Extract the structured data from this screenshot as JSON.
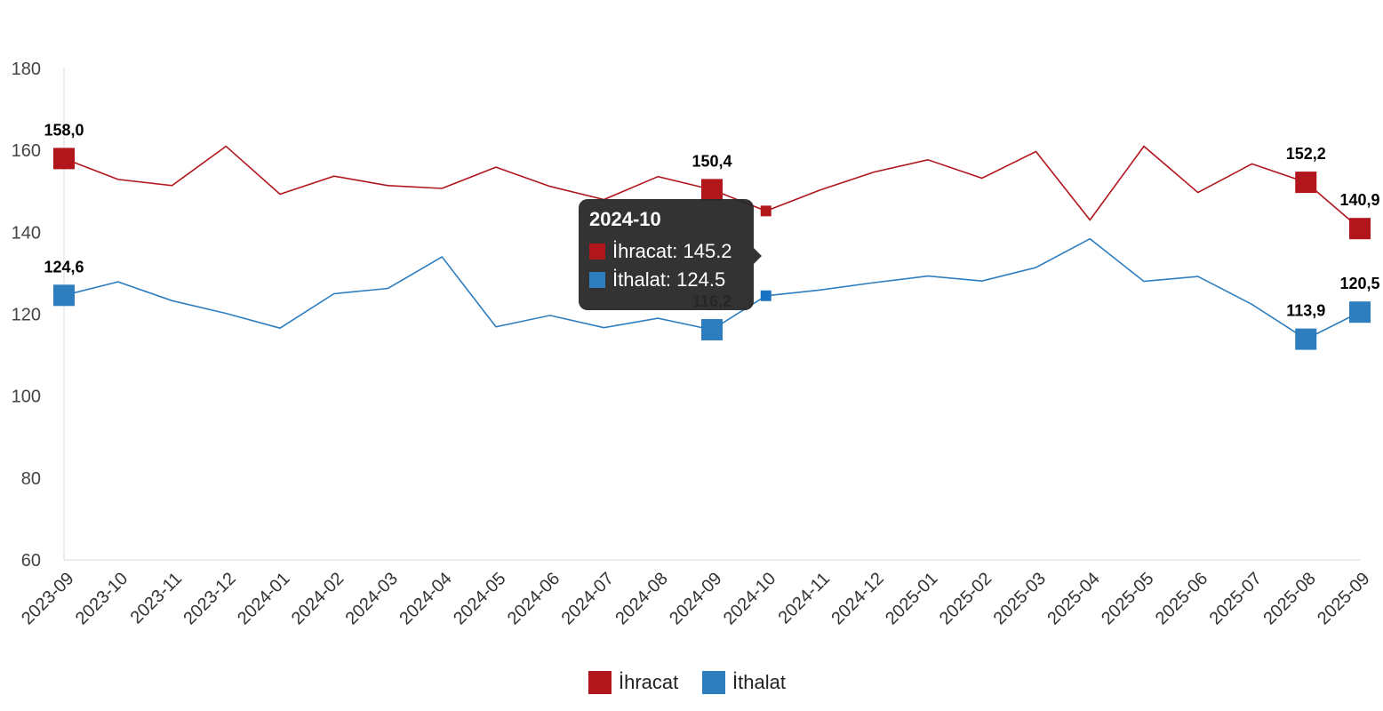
{
  "chart_data": {
    "type": "line",
    "categories": [
      "2023-09",
      "2023-10",
      "2023-11",
      "2023-12",
      "2024-01",
      "2024-02",
      "2024-03",
      "2024-04",
      "2024-05",
      "2024-06",
      "2024-07",
      "2024-08",
      "2024-09",
      "2024-10",
      "2024-11",
      "2024-12",
      "2025-01",
      "2025-02",
      "2025-03",
      "2025-04",
      "2025-05",
      "2025-06",
      "2025-07",
      "2025-08",
      "2025-09"
    ],
    "ylim": [
      60,
      180
    ],
    "yticks": [
      60,
      80,
      100,
      120,
      140,
      160,
      180
    ],
    "series": [
      {
        "name": "İhracat",
        "color": "#b0161c",
        "values": [
          158.0,
          152.9,
          151.4,
          161.0,
          149.3,
          153.7,
          151.4,
          150.7,
          155.9,
          151.2,
          148.0,
          153.6,
          150.4,
          145.2,
          150.3,
          154.7,
          157.7,
          153.2,
          159.7,
          143.0,
          161.0,
          149.7,
          156.7,
          152.2,
          140.9
        ],
        "labels": [
          {
            "index": 0,
            "text": "158,0"
          },
          {
            "index": 12,
            "text": "150,4"
          },
          {
            "index": 23,
            "text": "152,2"
          },
          {
            "index": 24,
            "text": "140,9"
          }
        ]
      },
      {
        "name": "İthalat",
        "color": "#2e7ebf",
        "values": [
          124.6,
          127.9,
          123.3,
          120.2,
          116.6,
          125.0,
          126.3,
          134.0,
          116.9,
          119.7,
          116.7,
          119.0,
          116.2,
          124.5,
          125.9,
          127.7,
          129.3,
          128.1,
          131.4,
          138.4,
          128.0,
          129.2,
          122.4,
          113.9,
          120.5
        ],
        "labels": [
          {
            "index": 0,
            "text": "124,6"
          },
          {
            "index": 12,
            "text": "116,2"
          },
          {
            "index": 23,
            "text": "113,9"
          },
          {
            "index": 24,
            "text": "120,5"
          }
        ]
      }
    ],
    "legend_position": "bottom-center",
    "grid": false,
    "tooltip": {
      "category": "2024-10",
      "rows": [
        {
          "text": "İhracat: 145.2",
          "color": "#b0161c"
        },
        {
          "text": "İthalat: 124.5",
          "color": "#2e7ebf"
        }
      ]
    }
  },
  "legend": {
    "items": [
      {
        "label": "İhracat",
        "color": "#b0161c"
      },
      {
        "label": "İthalat",
        "color": "#2e7ebf"
      }
    ]
  }
}
